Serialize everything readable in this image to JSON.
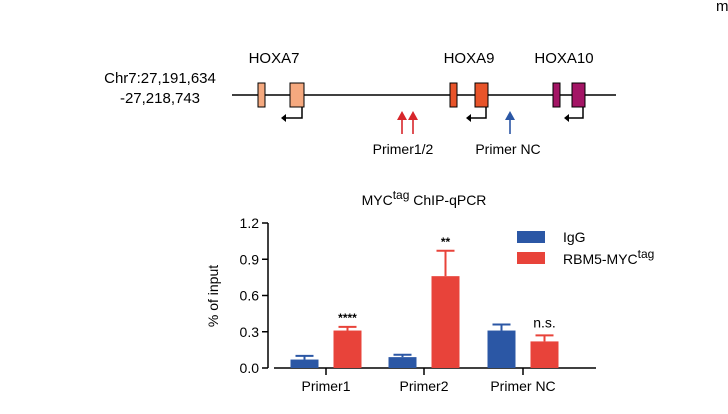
{
  "locus": {
    "chr_line1": "Chr7:27,191,634",
    "chr_line2": "-27,218,743",
    "genes": [
      {
        "name": "HOXA7",
        "color": "#f5a97f"
      },
      {
        "name": "HOXA9",
        "color": "#e8542a"
      },
      {
        "name": "HOXA10",
        "color": "#a31565"
      }
    ],
    "primers": [
      {
        "label": "Primer1/2",
        "color": "#d7262b"
      },
      {
        "label": "Primer NC",
        "color": "#2b57a5"
      }
    ],
    "corner_text": "m"
  },
  "chart_data": {
    "type": "bar",
    "title_main": "MYC",
    "title_sup": "tag",
    "title_rest": " ChIP-qPCR",
    "ylabel": "% of input",
    "ylim": [
      0,
      1.2
    ],
    "yticks": [
      "0.0",
      "0.3",
      "0.6",
      "0.9",
      "1.2"
    ],
    "categories": [
      "Primer1",
      "Primer2",
      "Primer NC"
    ],
    "series": [
      {
        "name": "IgG",
        "color": "#2b57a5",
        "values": [
          0.07,
          0.09,
          0.31
        ],
        "errors": [
          0.03,
          0.02,
          0.05
        ]
      },
      {
        "name_main": "RBM5-MYC",
        "name_sup": "tag",
        "color": "#e8433a",
        "values": [
          0.31,
          0.76,
          0.22
        ],
        "errors": [
          0.03,
          0.21,
          0.05
        ]
      }
    ],
    "significance": [
      "****",
      "**",
      "n.s."
    ]
  }
}
